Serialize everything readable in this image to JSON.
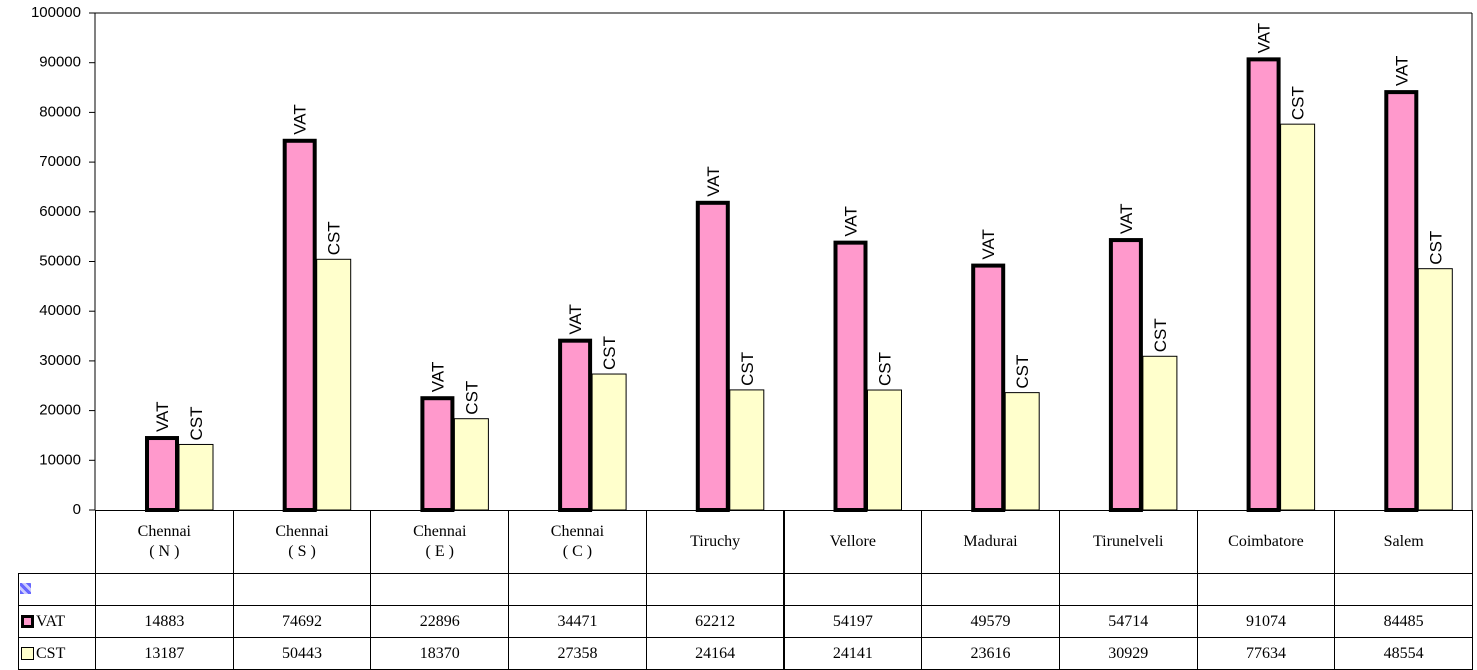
{
  "chart_data": {
    "type": "bar",
    "categories": [
      "Chennai\n( N )",
      "Chennai\n( S )",
      "Chennai\n( E )",
      "Chennai\n( C )",
      "Tiruchy",
      "Vellore",
      "Madurai",
      "Tirunelveli",
      "Coimbatore",
      "Salem"
    ],
    "series": [
      {
        "name": "VAT",
        "color": "#ff99cc",
        "values": [
          14883,
          74692,
          22896,
          34471,
          62212,
          54197,
          49579,
          54714,
          91074,
          84485
        ]
      },
      {
        "name": "CST",
        "color": "#ffffcc",
        "values": [
          13187,
          50443,
          18370,
          27358,
          24164,
          24141,
          23616,
          30929,
          77634,
          48554
        ]
      }
    ],
    "ylim": [
      0,
      100000
    ],
    "yticks": [
      0,
      10000,
      20000,
      30000,
      40000,
      50000,
      60000,
      70000,
      80000,
      90000,
      100000
    ],
    "grid": false
  }
}
